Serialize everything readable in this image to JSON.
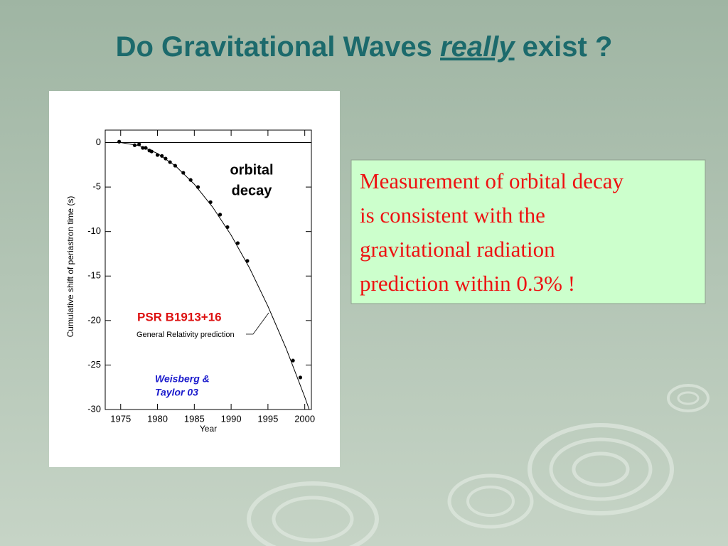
{
  "slide": {
    "title_parts": [
      "Do Gravitational Waves ",
      "really",
      " exist ?"
    ],
    "note_lines": [
      "Measurement of orbital decay",
      "is consistent with the",
      "gravitational radiation",
      "prediction within 0.3% !"
    ]
  },
  "chart_data": {
    "type": "scatter",
    "x_label": "Year",
    "y_label": "Cumulative shift of periastron time (s)",
    "annotations": {
      "decay_lines": [
        "orbital",
        "decay"
      ],
      "pulsar": "PSR B1913+16",
      "prediction": "General Relativity prediction",
      "credit_lines": [
        "Weisberg &",
        "Taylor 03"
      ]
    },
    "xlim": [
      1972.9,
      2000.9
    ],
    "ylim": [
      -30,
      1.4
    ],
    "xticks": [
      1975,
      1980,
      1985,
      1990,
      1995,
      2000
    ],
    "yticks": [
      0,
      -5,
      -10,
      -15,
      -20,
      -25,
      -30
    ],
    "series": [
      {
        "color": "#000000",
        "marker": "circle",
        "x": [
          1974.8,
          1976.9,
          1977.5,
          1978,
          1978.4,
          1978.9,
          1979.2,
          1980,
          1980.6,
          1981.1,
          1981.7,
          1982.4,
          1983.5,
          1984.5,
          1985.5,
          1987.2,
          1988.5,
          1989.5,
          1990.9,
          1992.2,
          1998.4,
          1999.4
        ],
        "values": [
          0.1,
          -0.3,
          -0.2,
          -0.6,
          -0.6,
          -0.9,
          -1.0,
          -1.4,
          -1.5,
          -1.8,
          -2.2,
          -2.6,
          -3.4,
          -4.2,
          -5.0,
          -6.7,
          -8.1,
          -9.5,
          -11.3,
          -13.3,
          -24.5,
          -26.4
        ]
      },
      {
        "color": "#000000",
        "marker": "none",
        "x": [
          1974,
          1975,
          1977.5,
          1980,
          1982.5,
          1985,
          1987.5,
          1990,
          1992.5,
          1995,
          1997.5,
          2000,
          2000.6
        ],
        "values": [
          0,
          0,
          -0.33,
          -1.22,
          -2.67,
          -4.68,
          -7.26,
          -10.4,
          -14.1,
          -18.4,
          -23.2,
          -28.6,
          -30
        ]
      }
    ]
  }
}
